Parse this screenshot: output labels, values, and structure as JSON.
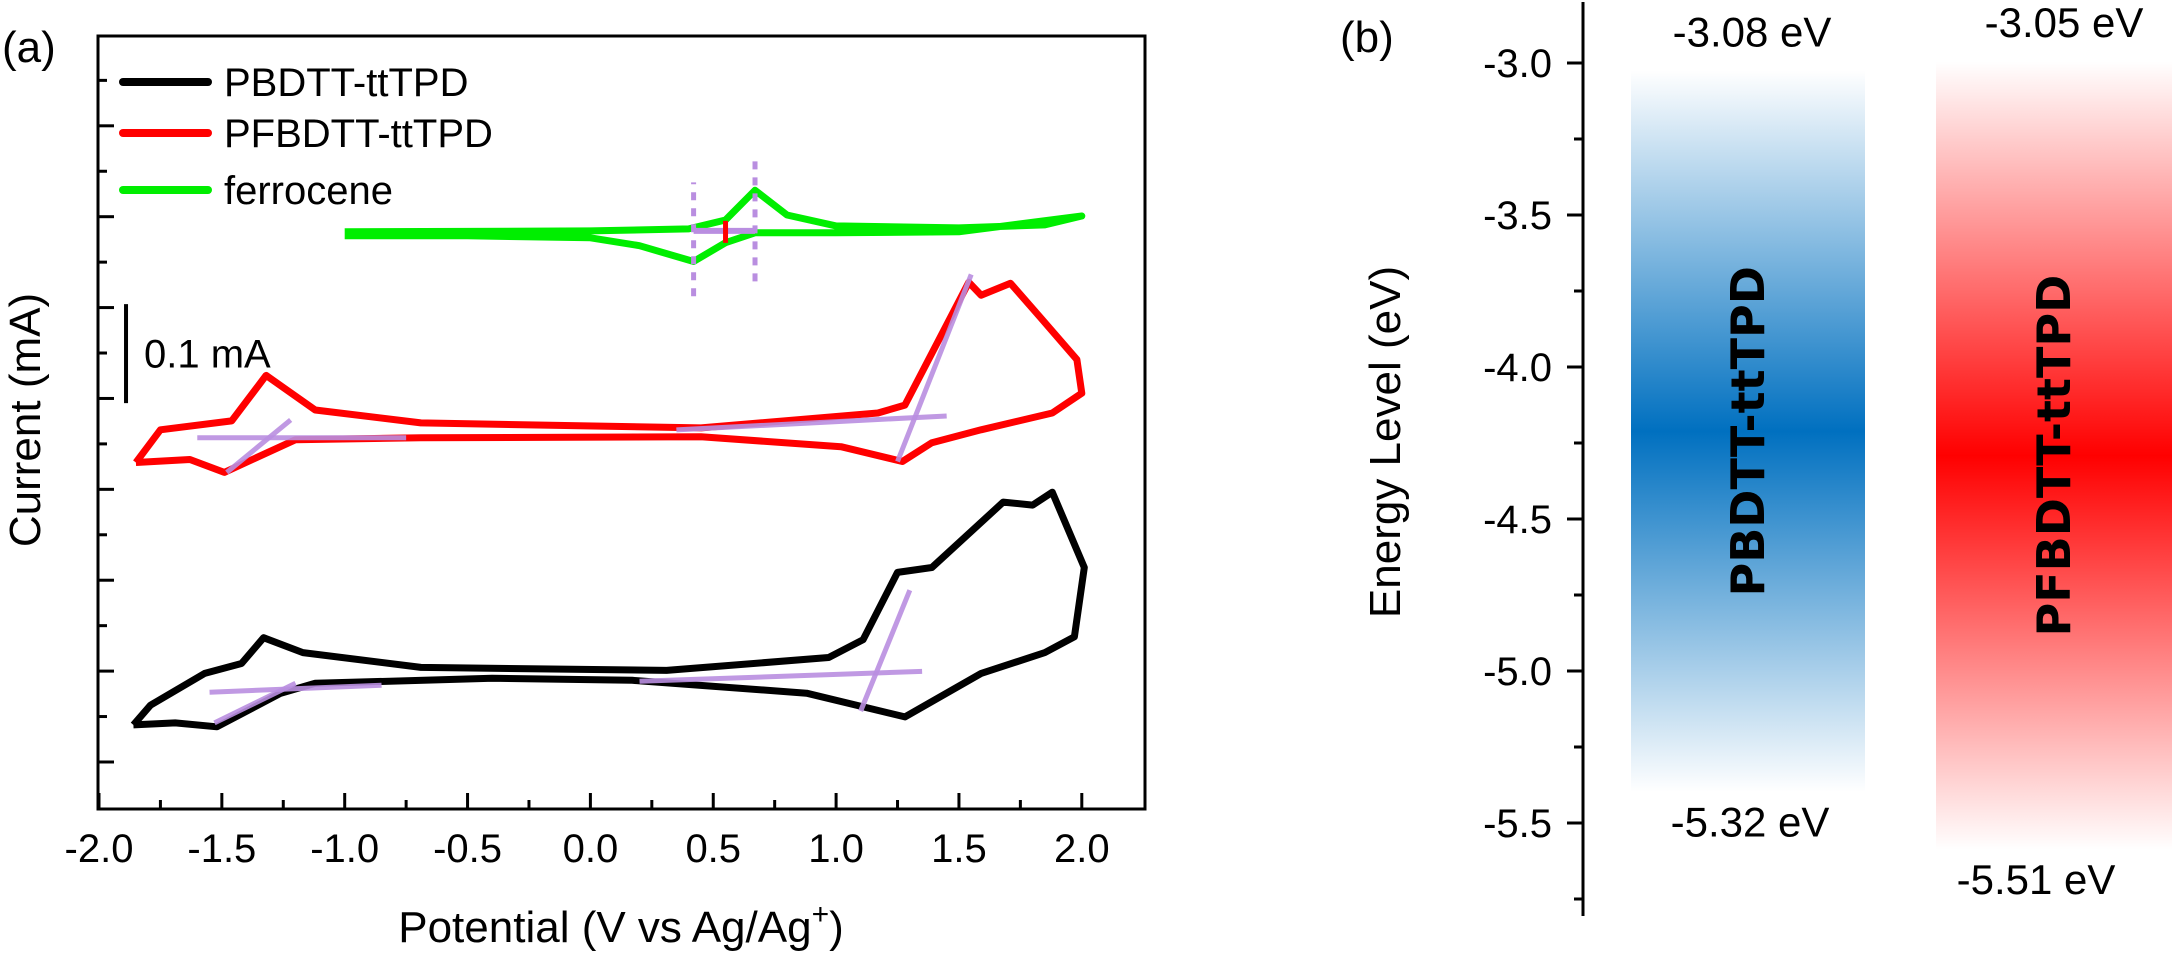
{
  "chart_data": [
    {
      "type": "line",
      "panel_label": "(a)",
      "title": "",
      "xlabel": "Potential (V vs Ag/Ag",
      "xlabel_superscript": "+",
      "xlabel_close": ")",
      "ylabel": "Current (mA)",
      "xlim": [
        -2.0,
        2.3
      ],
      "ylim": [
        0.0,
        0.78
      ],
      "xticks": [
        -2.0,
        -1.5,
        -1.0,
        -0.5,
        0.0,
        0.5,
        1.0,
        1.5,
        2.0
      ],
      "xtick_labels": [
        "-2.0",
        "-1.5",
        "-1.0",
        "-0.5",
        "0.0",
        "0.5",
        "1.0",
        "1.5",
        "2.0"
      ],
      "xminor_step": 0.25,
      "yticks_unlabeled": {
        "start": 0.0485,
        "step": 0.0459,
        "count": 16
      },
      "grid": false,
      "legend_position": "top-left",
      "scale_bar": {
        "label": "0.1 mA",
        "value_mA": 0.1,
        "x": -1.89,
        "y_bottom": 0.411
      },
      "series": [
        {
          "name": "PBDTT-ttTPD",
          "color": "#000000",
          "points": [
            [
              -1.86,
              0.086
            ],
            [
              -1.79,
              0.106
            ],
            [
              -1.57,
              0.138
            ],
            [
              -1.42,
              0.148
            ],
            [
              -1.33,
              0.174
            ],
            [
              -1.17,
              0.159
            ],
            [
              -0.69,
              0.144
            ],
            [
              0.31,
              0.141
            ],
            [
              0.97,
              0.154
            ],
            [
              1.11,
              0.172
            ],
            [
              1.25,
              0.24
            ],
            [
              1.39,
              0.245
            ],
            [
              1.68,
              0.311
            ],
            [
              1.8,
              0.308
            ],
            [
              1.88,
              0.321
            ],
            [
              2.01,
              0.245
            ],
            [
              1.97,
              0.175
            ],
            [
              1.85,
              0.159
            ],
            [
              1.59,
              0.138
            ],
            [
              1.28,
              0.094
            ],
            [
              0.88,
              0.118
            ],
            [
              0.17,
              0.131
            ],
            [
              -0.4,
              0.133
            ],
            [
              -1.12,
              0.128
            ],
            [
              -1.26,
              0.118
            ],
            [
              -1.52,
              0.084
            ],
            [
              -1.69,
              0.088
            ],
            [
              -1.86,
              0.086
            ]
          ]
        },
        {
          "name": "PFBDTT-ttTPD",
          "color": "#ff0000",
          "points": [
            [
              -1.85,
              0.351
            ],
            [
              -1.75,
              0.384
            ],
            [
              -1.46,
              0.393
            ],
            [
              -1.32,
              0.439
            ],
            [
              -1.12,
              0.404
            ],
            [
              -0.69,
              0.391
            ],
            [
              0.45,
              0.386
            ],
            [
              1.17,
              0.401
            ],
            [
              1.28,
              0.409
            ],
            [
              1.54,
              0.533
            ],
            [
              1.59,
              0.52
            ],
            [
              1.71,
              0.532
            ],
            [
              1.83,
              0.498
            ],
            [
              1.98,
              0.455
            ],
            [
              2.0,
              0.421
            ],
            [
              1.88,
              0.401
            ],
            [
              1.59,
              0.384
            ],
            [
              1.39,
              0.371
            ],
            [
              1.27,
              0.352
            ],
            [
              1.02,
              0.367
            ],
            [
              0.45,
              0.377
            ],
            [
              -0.69,
              0.376
            ],
            [
              -1.2,
              0.374
            ],
            [
              -1.49,
              0.341
            ],
            [
              -1.63,
              0.354
            ],
            [
              -1.85,
              0.351
            ]
          ]
        },
        {
          "name": "ferrocene",
          "color": "#00ee00",
          "points": [
            [
              -1.0,
              0.584
            ],
            [
              0.0,
              0.585
            ],
            [
              0.4,
              0.587
            ],
            [
              0.55,
              0.596
            ],
            [
              0.67,
              0.626
            ],
            [
              0.8,
              0.601
            ],
            [
              1.0,
              0.59
            ],
            [
              1.5,
              0.588
            ],
            [
              1.85,
              0.591
            ],
            [
              2.0,
              0.6
            ],
            [
              1.5,
              0.584
            ],
            [
              1.0,
              0.583
            ],
            [
              0.67,
              0.583
            ],
            [
              0.55,
              0.573
            ],
            [
              0.42,
              0.554
            ],
            [
              0.2,
              0.57
            ],
            [
              0.0,
              0.578
            ],
            [
              -0.5,
              0.58
            ],
            [
              -1.0,
              0.58
            ]
          ]
        }
      ],
      "annotations": {
        "tangent_color": "#b98ee0",
        "tangent_lines": [
          [
            [
              -1.6,
              0.376
            ],
            [
              -0.75,
              0.376
            ]
          ],
          [
            [
              -1.48,
              0.341
            ],
            [
              -1.22,
              0.394
            ]
          ],
          [
            [
              0.35,
              0.384
            ],
            [
              1.45,
              0.398
            ]
          ],
          [
            [
              1.25,
              0.352
            ],
            [
              1.55,
              0.541
            ]
          ],
          [
            [
              -1.55,
              0.119
            ],
            [
              -0.85,
              0.126
            ]
          ],
          [
            [
              -1.53,
              0.088
            ],
            [
              -1.2,
              0.128
            ]
          ],
          [
            [
              0.2,
              0.13
            ],
            [
              1.35,
              0.14
            ]
          ],
          [
            [
              1.1,
              0.1
            ],
            [
              1.3,
              0.222
            ]
          ]
        ],
        "ferrocene_dashed_lines": [
          {
            "x": 0.42,
            "y_range": [
              0.519,
              0.634
            ]
          },
          {
            "x": 0.67,
            "y_range": [
              0.534,
              0.657
            ]
          }
        ],
        "ferrocene_half_wave": {
          "x_range": [
            0.42,
            0.67
          ],
          "y": 0.585,
          "e_half": 0.55,
          "marker_color": "#ff0000"
        }
      }
    },
    {
      "type": "bar",
      "panel_label": "(b)",
      "title": "",
      "xlabel": "",
      "ylabel": "Energy Level (eV)",
      "ylim": [
        -5.8,
        -2.8
      ],
      "yticks": [
        -3.0,
        -3.5,
        -4.0,
        -4.5,
        -5.0,
        -5.5
      ],
      "ytick_labels": [
        "-3.0",
        "-3.5",
        "-4.0",
        "-4.5",
        "-5.0",
        "-5.5"
      ],
      "yminor_step": 0.25,
      "grid": false,
      "bars": [
        {
          "name": "PBDTT-ttTPD",
          "lumo": -3.08,
          "homo": -5.32,
          "lumo_label": "-3.08 eV",
          "homo_label": "-5.32 eV",
          "color": "#0070c0"
        },
        {
          "name": "PFBDTT-ttTPD",
          "lumo": -3.05,
          "homo": -5.51,
          "lumo_label": "-3.05 eV",
          "homo_label": "-5.51 eV",
          "color": "#ff0000"
        }
      ]
    }
  ]
}
